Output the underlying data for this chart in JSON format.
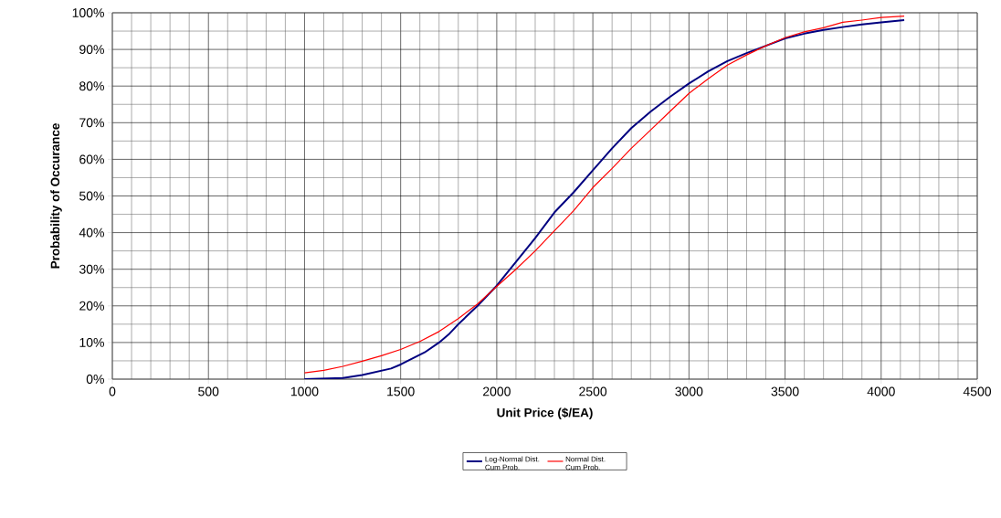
{
  "chart_data": {
    "type": "line",
    "xlabel": "Unit Price ($/EA)",
    "ylabel": "Probability of Occurance",
    "xlim": [
      0,
      4500
    ],
    "xticks": [
      0,
      500,
      1000,
      1500,
      2000,
      2500,
      3000,
      3500,
      4000,
      4500
    ],
    "ylim": [
      0,
      100
    ],
    "yticks": [
      {
        "value": 0,
        "label": "0%"
      },
      {
        "value": 10,
        "label": "10%"
      },
      {
        "value": 20,
        "label": "20%"
      },
      {
        "value": 30,
        "label": "30%"
      },
      {
        "value": 40,
        "label": "40%"
      },
      {
        "value": 50,
        "label": "50%"
      },
      {
        "value": 60,
        "label": "60%"
      },
      {
        "value": 70,
        "label": "70%"
      },
      {
        "value": 80,
        "label": "80%"
      },
      {
        "value": 90,
        "label": "90%"
      },
      {
        "value": 100,
        "label": "100%"
      }
    ],
    "grid": true,
    "legend": "bottom",
    "marker": "none",
    "line_style": "solid",
    "series": [
      {
        "name": "Log-Normal Dist. Cum Prob.",
        "color": "#000080",
        "x": [
          1000,
          1200,
          1300,
          1450,
          1500,
          1625,
          1700,
          1750,
          1800,
          1900,
          2000,
          2100,
          2200,
          2300,
          2400,
          2500,
          2600,
          2700,
          2800,
          2900,
          3000,
          3100,
          3200,
          3300,
          3400,
          3500,
          3600,
          3700,
          3800,
          3900,
          4000,
          4120
        ],
        "values": [
          0,
          0.3,
          1.1,
          2.9,
          4,
          7.3,
          10,
          12.2,
          15,
          20,
          25.5,
          32,
          38.5,
          45.5,
          51,
          57,
          63,
          68.5,
          73,
          77,
          80.7,
          84,
          86.8,
          89,
          91,
          93,
          94.3,
          95.3,
          96.1,
          96.8,
          97.4,
          98
        ]
      },
      {
        "name": "Normal Dist. Cum Prob.",
        "color": "#ff0000",
        "x": [
          1000,
          1100,
          1200,
          1300,
          1400,
          1500,
          1600,
          1700,
          1800,
          1900,
          2000,
          2100,
          2200,
          2300,
          2400,
          2500,
          2600,
          2700,
          2800,
          2900,
          3000,
          3100,
          3200,
          3300,
          3400,
          3500,
          3600,
          3700,
          3800,
          3900,
          4000,
          4120
        ],
        "values": [
          1.7,
          2.4,
          3.5,
          4.9,
          6.4,
          8.1,
          10.3,
          13,
          16.5,
          20.5,
          25.3,
          30,
          35,
          40.5,
          46,
          52.3,
          57.5,
          63,
          68,
          73,
          78,
          82,
          85.7,
          88.5,
          91,
          93.2,
          94.8,
          95.9,
          97.4,
          98,
          98.7,
          99.1
        ]
      }
    ]
  }
}
